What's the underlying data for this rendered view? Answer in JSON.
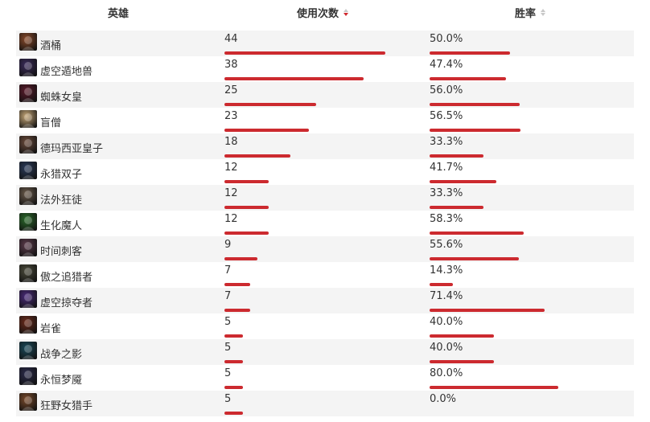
{
  "header": {
    "hero_label": "英雄",
    "uses_label": "使用次数",
    "winrate_label": "胜率"
  },
  "colors": {
    "bar": "#cc2a2f",
    "sort_active": "#d0282e",
    "row_alt": "#f4f4f4"
  },
  "max_uses": 44,
  "rows": [
    {
      "name": "酒桶",
      "uses": "44",
      "uses_value": 44,
      "winrate": "50.0%",
      "winrate_value": 50.0,
      "avatar_color": "#8a4a2a",
      "avatar_icon": "barrel-icon"
    },
    {
      "name": "虚空遁地兽",
      "uses": "38",
      "uses_value": 38,
      "winrate": "47.4%",
      "winrate_value": 47.4,
      "avatar_color": "#3a2a5a",
      "avatar_icon": "void-burrower-icon"
    },
    {
      "name": "蜘蛛女皇",
      "uses": "25",
      "uses_value": 25,
      "winrate": "56.0%",
      "winrate_value": 56.0,
      "avatar_color": "#5a1a2a",
      "avatar_icon": "spider-queen-icon"
    },
    {
      "name": "盲僧",
      "uses": "23",
      "uses_value": 23,
      "winrate": "56.5%",
      "winrate_value": 56.5,
      "avatar_color": "#c8a878",
      "avatar_icon": "blind-monk-icon"
    },
    {
      "name": "德玛西亚皇子",
      "uses": "18",
      "uses_value": 18,
      "winrate": "33.3%",
      "winrate_value": 33.3,
      "avatar_color": "#6a4a3a",
      "avatar_icon": "prince-icon"
    },
    {
      "name": "永猎双子",
      "uses": "12",
      "uses_value": 12,
      "winrate": "41.7%",
      "winrate_value": 41.7,
      "avatar_color": "#2a3a5a",
      "avatar_icon": "eternal-hunters-icon"
    },
    {
      "name": "法外狂徒",
      "uses": "12",
      "uses_value": 12,
      "winrate": "33.3%",
      "winrate_value": 33.3,
      "avatar_color": "#6a5a4a",
      "avatar_icon": "outlaw-icon"
    },
    {
      "name": "生化魔人",
      "uses": "12",
      "uses_value": 12,
      "winrate": "58.3%",
      "winrate_value": 58.3,
      "avatar_color": "#2a6a2a",
      "avatar_icon": "chemtech-icon"
    },
    {
      "name": "时间刺客",
      "uses": "9",
      "uses_value": 9,
      "winrate": "55.6%",
      "winrate_value": 55.6,
      "avatar_color": "#5a3a4a",
      "avatar_icon": "time-assassin-icon"
    },
    {
      "name": "傲之追猎者",
      "uses": "7",
      "uses_value": 7,
      "winrate": "14.3%",
      "winrate_value": 14.3,
      "avatar_color": "#4a4a3a",
      "avatar_icon": "pridestalker-icon"
    },
    {
      "name": "虚空掠夺者",
      "uses": "7",
      "uses_value": 7,
      "winrate": "71.4%",
      "winrate_value": 71.4,
      "avatar_color": "#4a2a7a",
      "avatar_icon": "void-reaver-icon"
    },
    {
      "name": "岩雀",
      "uses": "5",
      "uses_value": 5,
      "winrate": "40.0%",
      "winrate_value": 40.0,
      "avatar_color": "#6a2a1a",
      "avatar_icon": "rock-weaver-icon"
    },
    {
      "name": "战争之影",
      "uses": "5",
      "uses_value": 5,
      "winrate": "40.0%",
      "winrate_value": 40.0,
      "avatar_color": "#1a4a5a",
      "avatar_icon": "shadow-of-war-icon"
    },
    {
      "name": "永恒梦魇",
      "uses": "5",
      "uses_value": 5,
      "winrate": "80.0%",
      "winrate_value": 80.0,
      "avatar_color": "#2a2a4a",
      "avatar_icon": "nightmare-icon"
    },
    {
      "name": "狂野女猎手",
      "uses": "5",
      "uses_value": 5,
      "winrate": "0.0%",
      "winrate_value": 0.0,
      "avatar_color": "#7a4a2a",
      "avatar_icon": "huntress-icon"
    }
  ]
}
